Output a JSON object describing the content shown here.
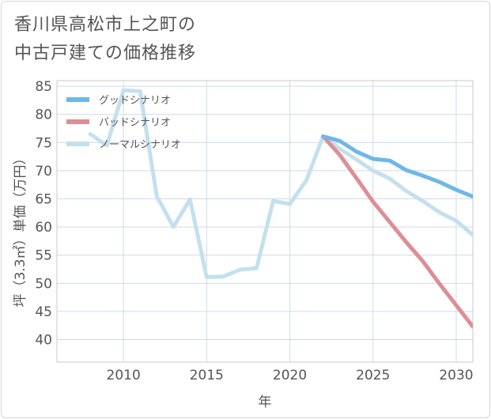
{
  "chart_data": {
    "type": "line",
    "title_line1": "香川県高松市上之町の",
    "title_line2": "中古戸建ての価格推移",
    "xlabel": "年",
    "ylabel": "坪（3.3㎡）単価（万円）",
    "xlim": [
      2006,
      2031
    ],
    "ylim": [
      36,
      86
    ],
    "x_ticks": [
      2010,
      2015,
      2020,
      2025,
      2030
    ],
    "y_ticks": [
      40,
      45,
      50,
      55,
      60,
      65,
      70,
      75,
      80,
      85
    ],
    "legend_position": "top-left",
    "series": [
      {
        "name": "グッドシナリオ",
        "color": "#6cb8ea",
        "x": [
          2022,
          2023,
          2024,
          2025,
          2026,
          2027,
          2028,
          2029,
          2030,
          2031
        ],
        "values": [
          76.1,
          75.3,
          73.4,
          72.1,
          71.8,
          70.1,
          69.1,
          68.0,
          66.6,
          65.4
        ]
      },
      {
        "name": "バッドシナリオ",
        "color": "#de8e93",
        "x": [
          2022,
          2023,
          2024,
          2025,
          2026,
          2027,
          2028,
          2029,
          2030,
          2031
        ],
        "values": [
          76.1,
          72.8,
          68.7,
          64.5,
          60.9,
          57.3,
          53.9,
          49.9,
          46.1,
          42.3
        ]
      },
      {
        "name": "ノーマルシナリオ",
        "color": "#c4e0ee",
        "x": [
          2008,
          2009,
          2010,
          2011,
          2012,
          2013,
          2014,
          2015,
          2016,
          2017,
          2018,
          2019,
          2020,
          2021,
          2022,
          2023,
          2024,
          2025,
          2026,
          2027,
          2028,
          2029,
          2030,
          2031
        ],
        "values": [
          76.5,
          74.5,
          84.3,
          84.1,
          65.5,
          60.0,
          64.9,
          51.1,
          51.2,
          52.4,
          52.7,
          64.6,
          64.1,
          68.3,
          76.1,
          73.9,
          72.0,
          70.0,
          68.6,
          66.4,
          64.6,
          62.6,
          61.1,
          58.6
        ]
      }
    ]
  }
}
